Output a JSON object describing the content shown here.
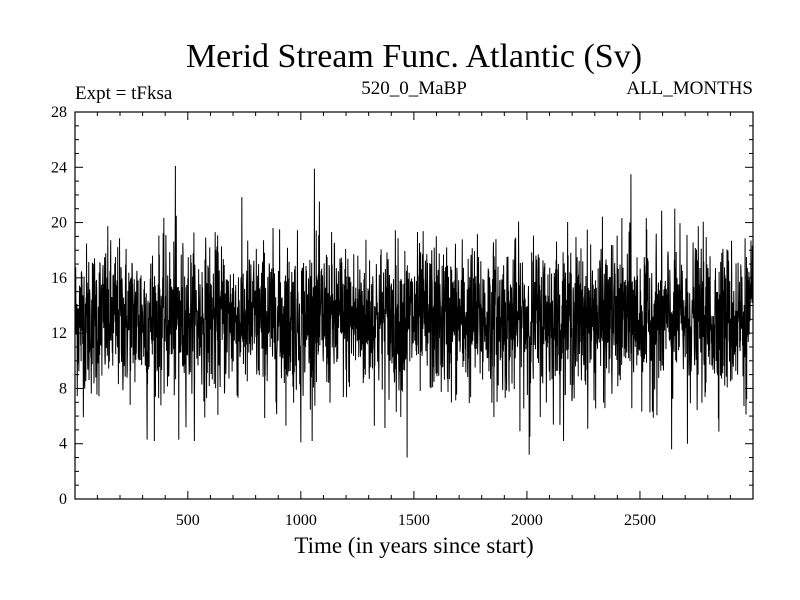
{
  "chart_data": {
    "type": "line",
    "title": "Merid Stream Func. Atlantic (Sv)",
    "subtitle_left": "Expt = tFksa",
    "subtitle_center": "520_0_MaBP",
    "subtitle_right": "ALL_MONTHS",
    "xlabel": "Time (in years since start)",
    "ylabel": "",
    "xlim": [
      1,
      3000
    ],
    "ylim": [
      0,
      28
    ],
    "x_ticks": [
      500,
      1000,
      1500,
      2000,
      2500
    ],
    "y_ticks": [
      0,
      4,
      8,
      12,
      16,
      20,
      24,
      28
    ],
    "x_tick_labels": [
      "500",
      "1000",
      "1500",
      "2000",
      "2500"
    ],
    "y_tick_labels": [
      "0",
      "4",
      "8",
      "12",
      "16",
      "20",
      "24",
      "28"
    ],
    "grid": false,
    "series": [
      {
        "name": "Merid Stream Func. Atlantic",
        "color": "#000000",
        "mean": 13.0,
        "std": 2.7,
        "min": 3.0,
        "max": 24.1,
        "n_points": 3000,
        "notable_points": [
          {
            "x": 445,
            "y": 24.1
          },
          {
            "x": 1060,
            "y": 23.9
          },
          {
            "x": 2460,
            "y": 23.5
          },
          {
            "x": 1470,
            "y": 3.0
          },
          {
            "x": 2010,
            "y": 3.2
          },
          {
            "x": 2640,
            "y": 3.6
          },
          {
            "x": 1000,
            "y": 4.1
          },
          {
            "x": 320,
            "y": 4.3
          },
          {
            "x": 460,
            "y": 4.3
          },
          {
            "x": 2710,
            "y": 4.0
          }
        ]
      }
    ]
  }
}
